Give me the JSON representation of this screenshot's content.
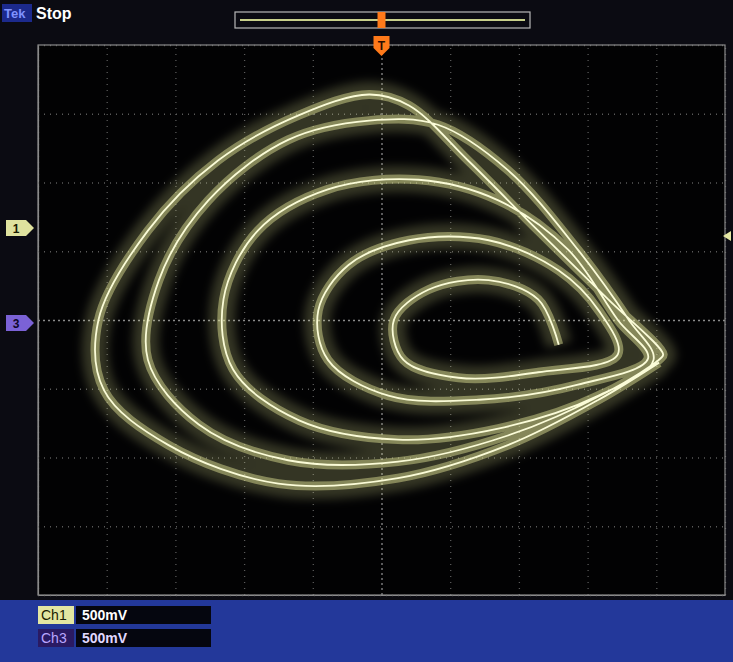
{
  "chart_data": {
    "type": "line",
    "x": [
      1.29,
      1.14,
      0.78,
      0.34,
      0.09,
      0.16,
      0.56,
      1.14,
      1.72,
      1.58,
      1.29,
      0.78,
      0.2,
      -0.24,
      -0.46,
      -0.39,
      0.05,
      0.71,
      1.43,
      1.94,
      1.72,
      1.36,
      0.85,
      0.27,
      -0.39,
      -0.9,
      -1.15,
      -1.08,
      -0.6,
      0.12,
      0.85,
      1.58,
      1.98,
      1.8,
      1.43,
      0.92,
      0.41,
      -0.09,
      -0.68,
      -1.26,
      -1.62,
      -1.7,
      -1.33,
      -0.68,
      0.12,
      0.92,
      1.65,
      2.03,
      2.05,
      1.65,
      1.14,
      0.63,
      0.2,
      -0.09,
      -0.6,
      -1.19,
      -1.7,
      -2.06,
      -2.02,
      -1.55,
      -0.75,
      0.12,
      0.92,
      1.58,
      2.02
    ],
    "values": [
      -0.18,
      0.15,
      0.29,
      0.22,
      0,
      -0.29,
      -0.42,
      -0.38,
      -0.25,
      0.07,
      0.36,
      0.58,
      0.58,
      0.4,
      0.07,
      -0.29,
      -0.55,
      -0.58,
      -0.47,
      -0.28,
      0,
      0.51,
      0.87,
      1.02,
      0.95,
      0.65,
      0.15,
      -0.36,
      -0.73,
      -0.87,
      -0.79,
      -0.55,
      -0.29,
      0,
      0.51,
      1.09,
      1.42,
      1.45,
      1.31,
      0.87,
      0.29,
      -0.29,
      -0.76,
      -1.02,
      -1.03,
      -0.84,
      -0.52,
      -0.28,
      -0.25,
      0.15,
      0.65,
      1.16,
      1.56,
      1.64,
      1.49,
      1.16,
      0.65,
      0,
      -0.51,
      -0.91,
      -1.19,
      -1.15,
      -0.91,
      -0.58,
      -0.31
    ],
    "color": "#e8eb9c",
    "xlim": [
      -2.5,
      2.5
    ],
    "ylim": [
      -2,
      2
    ],
    "xticks": [
      -2.5,
      -2,
      -1.5,
      -1,
      -0.5,
      0,
      0.5,
      1,
      1.5,
      2,
      2.5
    ],
    "yticks": [
      -2,
      -1.5,
      -1,
      -0.5,
      0,
      0.5,
      1,
      1.5,
      2
    ],
    "grid": true,
    "tick_labels": false,
    "annotations": [
      "Tek",
      "Stop",
      "T",
      "1",
      "3",
      "Ch1",
      "500mV",
      "Ch3",
      "500mV"
    ]
  }
}
